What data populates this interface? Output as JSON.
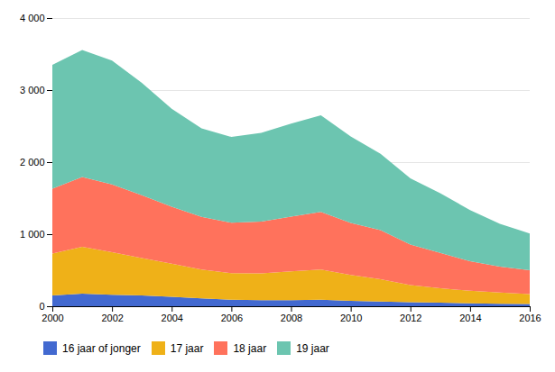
{
  "chart_data": {
    "type": "area",
    "stacked": true,
    "x": [
      2000,
      2001,
      2002,
      2003,
      2004,
      2005,
      2006,
      2007,
      2008,
      2009,
      2010,
      2011,
      2012,
      2013,
      2014,
      2015,
      2016
    ],
    "series": [
      {
        "name": "16 jaar of jonger",
        "values": [
          150,
          175,
          160,
          150,
          130,
          110,
          90,
          85,
          85,
          90,
          75,
          65,
          55,
          50,
          40,
          35,
          30
        ]
      },
      {
        "name": "17 jaar",
        "values": [
          580,
          650,
          590,
          520,
          460,
          400,
          370,
          370,
          400,
          420,
          360,
          310,
          240,
          200,
          175,
          155,
          140
        ]
      },
      {
        "name": "18 jaar",
        "values": [
          900,
          970,
          940,
          870,
          790,
          730,
          700,
          720,
          760,
          800,
          720,
          680,
          560,
          490,
          410,
          360,
          330
        ]
      },
      {
        "name": "19 jaar",
        "values": [
          1720,
          1760,
          1720,
          1560,
          1360,
          1230,
          1190,
          1230,
          1290,
          1340,
          1200,
          1060,
          920,
          830,
          710,
          595,
          510
        ]
      }
    ],
    "xlim": [
      2000,
      2016
    ],
    "xticks": [
      2000,
      2002,
      2004,
      2006,
      2008,
      2010,
      2012,
      2014,
      2016
    ],
    "ylim": [
      0,
      4000
    ],
    "yticks": [
      0,
      {
        "value": 1000,
        "label": "1 000"
      },
      {
        "value": 2000,
        "label": "2 000"
      },
      {
        "value": 3000,
        "label": "3 000"
      },
      {
        "value": 4000,
        "label": "4 000"
      }
    ],
    "grid": true,
    "legend": "bottom"
  }
}
